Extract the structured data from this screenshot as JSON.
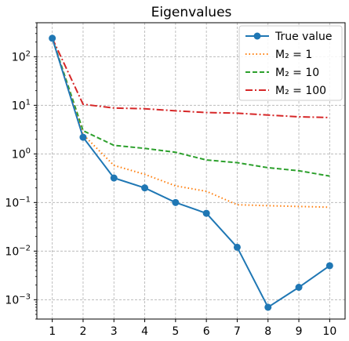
{
  "chart_data": {
    "type": "line",
    "title": "Eigenvalues",
    "xlabel": "",
    "ylabel": "",
    "yscale": "log",
    "x": [
      1,
      2,
      3,
      4,
      5,
      6,
      7,
      8,
      9,
      10
    ],
    "xlim": [
      0.5,
      10.5
    ],
    "ylim": [
      0.0004,
      500
    ],
    "grid": true,
    "legend_position": "top-right",
    "xticks": [
      "1",
      "2",
      "3",
      "4",
      "5",
      "6",
      "7",
      "8",
      "9",
      "10"
    ],
    "yticks": [
      {
        "value": 0.001,
        "mantissa": "10",
        "exp": "−3"
      },
      {
        "value": 0.01,
        "mantissa": "10",
        "exp": "−2"
      },
      {
        "value": 0.1,
        "mantissa": "10",
        "exp": "−1"
      },
      {
        "value": 1,
        "mantissa": "10",
        "exp": "0"
      },
      {
        "value": 10,
        "mantissa": "10",
        "exp": "1"
      },
      {
        "value": 100,
        "mantissa": "10",
        "exp": "2"
      }
    ],
    "series": [
      {
        "name": "True value",
        "style": "solid-marker",
        "color": "#1f77b4",
        "values": [
          240,
          2.2,
          0.32,
          0.2,
          0.1,
          0.06,
          0.012,
          0.0007,
          0.0018,
          0.005
        ]
      },
      {
        "name": "M₂ = 1",
        "style": "dotted",
        "color": "#ff7f0e",
        "values": [
          240,
          2.5,
          0.58,
          0.38,
          0.22,
          0.17,
          0.09,
          0.086,
          0.083,
          0.08
        ]
      },
      {
        "name": "M₂ = 10",
        "style": "dashed",
        "color": "#2ca02c",
        "values": [
          240,
          3.0,
          1.5,
          1.3,
          1.08,
          0.75,
          0.66,
          0.52,
          0.45,
          0.35
        ]
      },
      {
        "name": "M₂ = 100",
        "style": "dashdot",
        "color": "#d62728",
        "values": [
          240,
          10.5,
          8.8,
          8.5,
          7.7,
          7.1,
          6.9,
          6.3,
          5.8,
          5.6
        ]
      }
    ]
  }
}
